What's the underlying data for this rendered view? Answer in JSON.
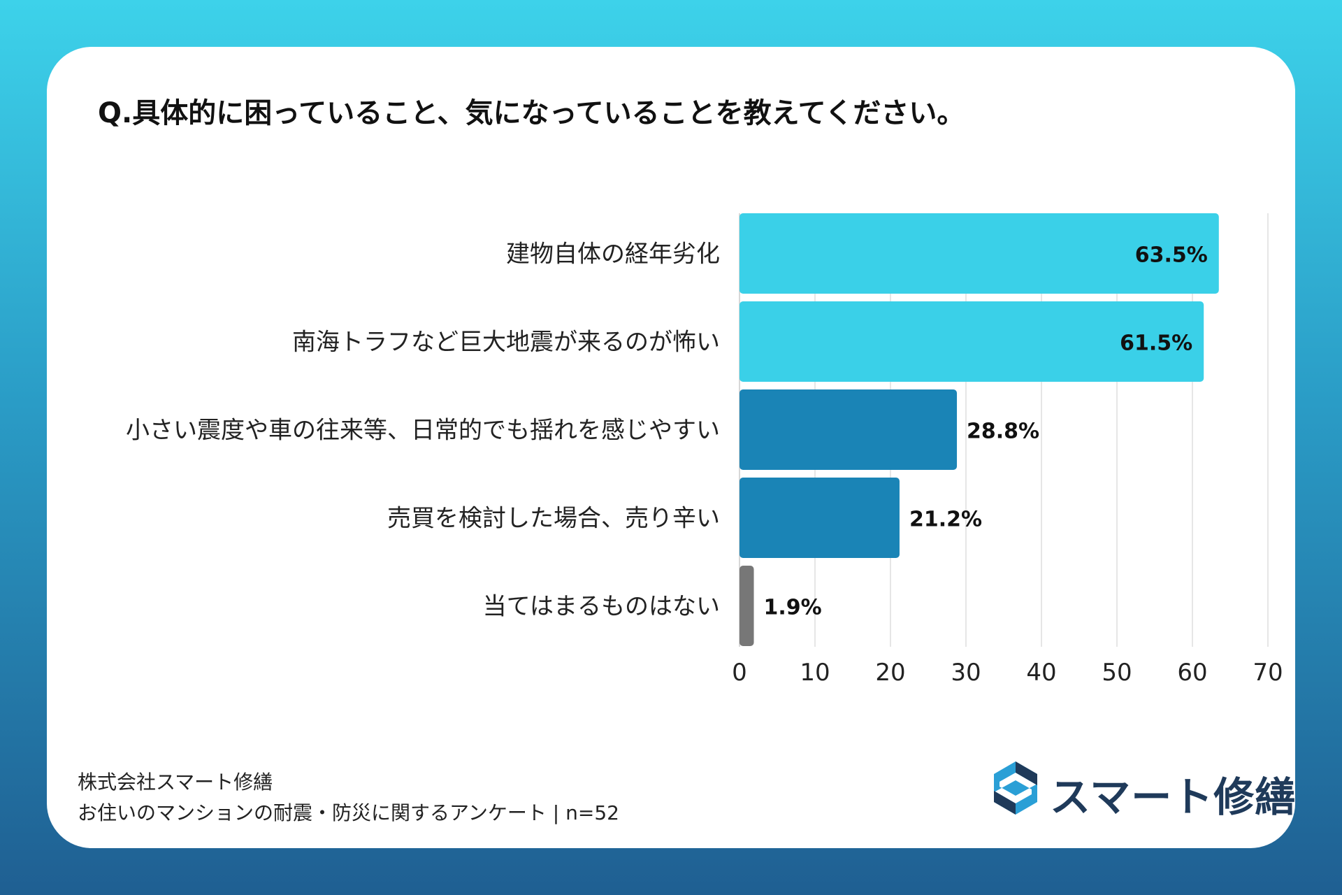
{
  "title": "Q.具体的に困っていること、気になっていることを教えてください。",
  "colors": {
    "highlight": "#3ad0e8",
    "mid": "#1a84b6",
    "none": "#777777",
    "grid": "#dddddd"
  },
  "chart_data": {
    "type": "bar",
    "orientation": "horizontal",
    "categories": [
      "建物自体の経年劣化",
      "南海トラフなど巨大地震が来るのが怖い",
      "小さい震度や車の往来等、日常的でも揺れを感じやすい",
      "売買を検討した場合、売り辛い",
      "当てはまるものはない"
    ],
    "values": [
      63.5,
      61.5,
      28.8,
      21.2,
      1.9
    ],
    "value_labels": [
      "63.5%",
      "61.5%",
      "28.8%",
      "21.2%",
      "1.9%"
    ],
    "xlim": [
      0,
      70
    ],
    "xticks": [
      "0",
      "10",
      "20",
      "30",
      "40",
      "50",
      "60",
      "70"
    ],
    "grid": true
  },
  "footer": {
    "company": "株式会社スマート修繕",
    "survey": "お住いのマンションの耐震・防災に関するアンケート | n=52"
  },
  "logo": {
    "text": "スマート修繕"
  }
}
